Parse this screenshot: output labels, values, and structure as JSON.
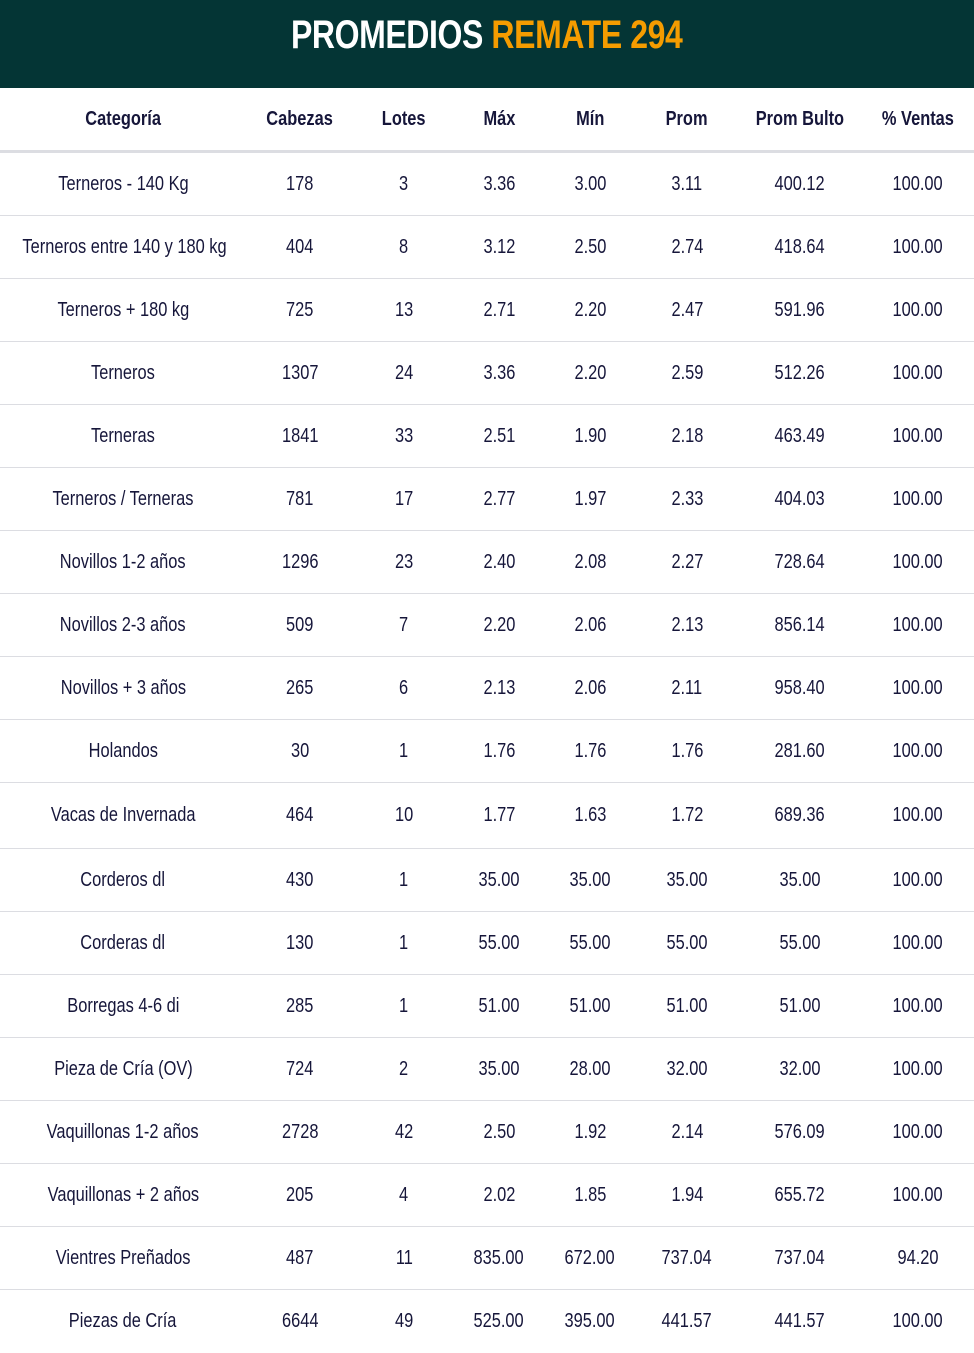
{
  "title": {
    "part1": "PROMEDIOS",
    "part2": "REMATE 294"
  },
  "colors": {
    "banner": "#043535",
    "accent": "#f59c00",
    "text": "#16163a"
  },
  "columns": [
    "Categoría",
    "Cabezas",
    "Lotes",
    "Máx",
    "Mín",
    "Prom",
    "Prom Bulto",
    "% Ventas"
  ],
  "rows": [
    [
      "Terneros - 140 Kg",
      "178",
      "3",
      "3.36",
      "3.00",
      "3.11",
      "400.12",
      "100.00"
    ],
    [
      "Terneros entre 140 y 180 kg",
      "404",
      "8",
      "3.12",
      "2.50",
      "2.74",
      "418.64",
      "100.00"
    ],
    [
      "Terneros + 180 kg",
      "725",
      "13",
      "2.71",
      "2.20",
      "2.47",
      "591.96",
      "100.00"
    ],
    [
      "Terneros",
      "1307",
      "24",
      "3.36",
      "2.20",
      "2.59",
      "512.26",
      "100.00"
    ],
    [
      "Terneras",
      "1841",
      "33",
      "2.51",
      "1.90",
      "2.18",
      "463.49",
      "100.00"
    ],
    [
      "Terneros / Terneras",
      "781",
      "17",
      "2.77",
      "1.97",
      "2.33",
      "404.03",
      "100.00"
    ],
    [
      "Novillos 1-2 años",
      "1296",
      "23",
      "2.40",
      "2.08",
      "2.27",
      "728.64",
      "100.00"
    ],
    [
      "Novillos 2-3 años",
      "509",
      "7",
      "2.20",
      "2.06",
      "2.13",
      "856.14",
      "100.00"
    ],
    [
      "Novillos + 3 años",
      "265",
      "6",
      "2.13",
      "2.06",
      "2.11",
      "958.40",
      "100.00"
    ],
    [
      "Holandos",
      "30",
      "1",
      "1.76",
      "1.76",
      "1.76",
      "281.60",
      "100.00"
    ],
    [
      "Vacas de Invernada",
      "464",
      "10",
      "1.77",
      "1.63",
      "1.72",
      "689.36",
      "100.00"
    ],
    [
      "Corderos dl",
      "430",
      "1",
      "35.00",
      "35.00",
      "35.00",
      "35.00",
      "100.00"
    ],
    [
      "Corderas dl",
      "130",
      "1",
      "55.00",
      "55.00",
      "55.00",
      "55.00",
      "100.00"
    ],
    [
      "Borregas 4-6 di",
      "285",
      "1",
      "51.00",
      "51.00",
      "51.00",
      "51.00",
      "100.00"
    ],
    [
      "Pieza de Cría (OV)",
      "724",
      "2",
      "35.00",
      "28.00",
      "32.00",
      "32.00",
      "100.00"
    ],
    [
      "Vaquillonas 1-2 años",
      "2728",
      "42",
      "2.50",
      "1.92",
      "2.14",
      "576.09",
      "100.00"
    ],
    [
      "Vaquillonas + 2 años",
      "205",
      "4",
      "2.02",
      "1.85",
      "1.94",
      "655.72",
      "100.00"
    ],
    [
      "Vientres Preñados",
      "487",
      "11",
      "835.00",
      "672.00",
      "737.04",
      "737.04",
      "94.20"
    ],
    [
      "Piezas de Cría",
      "6644",
      "49",
      "525.00",
      "395.00",
      "441.57",
      "441.57",
      "100.00"
    ]
  ]
}
